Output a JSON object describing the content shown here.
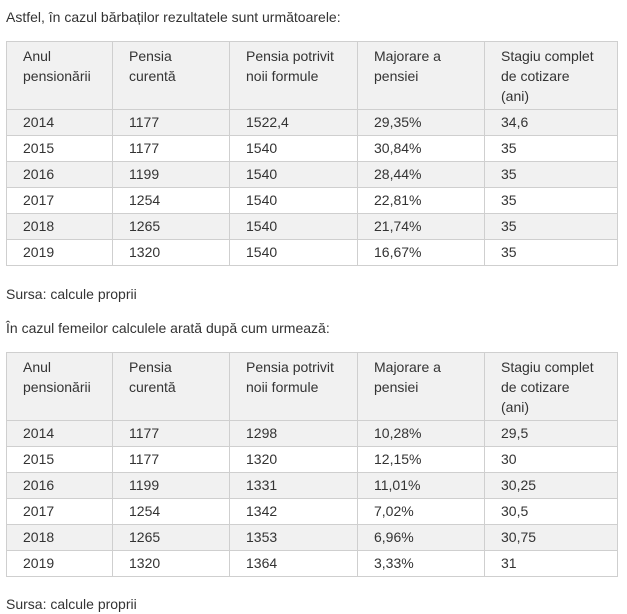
{
  "men_intro": "Astfel, în cazul bărbaților rezultatele sunt următoarele:",
  "women_intro": "În cazul femeilor calculele arată după cum urmează:",
  "columns": {
    "year": [
      "Anul",
      "pensionării"
    ],
    "current": [
      "Pensia",
      "curentă"
    ],
    "formula": [
      "Pensia potrivit",
      "noii formule"
    ],
    "increase": [
      "Majorare a",
      "pensiei"
    ],
    "stage": [
      "Stagiu complet",
      "de cotizare",
      "(ani)"
    ]
  },
  "men_rows": [
    [
      "2014",
      "1177",
      "1522,4",
      "29,35%",
      "34,6"
    ],
    [
      "2015",
      "1177",
      "1540",
      "30,84%",
      "35"
    ],
    [
      "2016",
      "1199",
      "1540",
      "28,44%",
      "35"
    ],
    [
      "2017",
      "1254",
      "1540",
      "22,81%",
      "35"
    ],
    [
      "2018",
      "1265",
      "1540",
      "21,74%",
      "35"
    ],
    [
      "2019",
      "1320",
      "1540",
      "16,67%",
      "35"
    ]
  ],
  "women_rows": [
    [
      "2014",
      "1177",
      "1298",
      "10,28%",
      "29,5"
    ],
    [
      "2015",
      "1177",
      "1320",
      "12,15%",
      "30"
    ],
    [
      "2016",
      "1199",
      "1331",
      "11,01%",
      "30,25"
    ],
    [
      "2017",
      "1254",
      "1342",
      "7,02%",
      "30,5"
    ],
    [
      "2018",
      "1265",
      "1353",
      "6,96%",
      "30,75"
    ],
    [
      "2019",
      "1320",
      "1364",
      "3,33%",
      "31"
    ]
  ],
  "men_source": "Sursa: calcule proprii",
  "women_source": "Sursa: calcule proprii"
}
